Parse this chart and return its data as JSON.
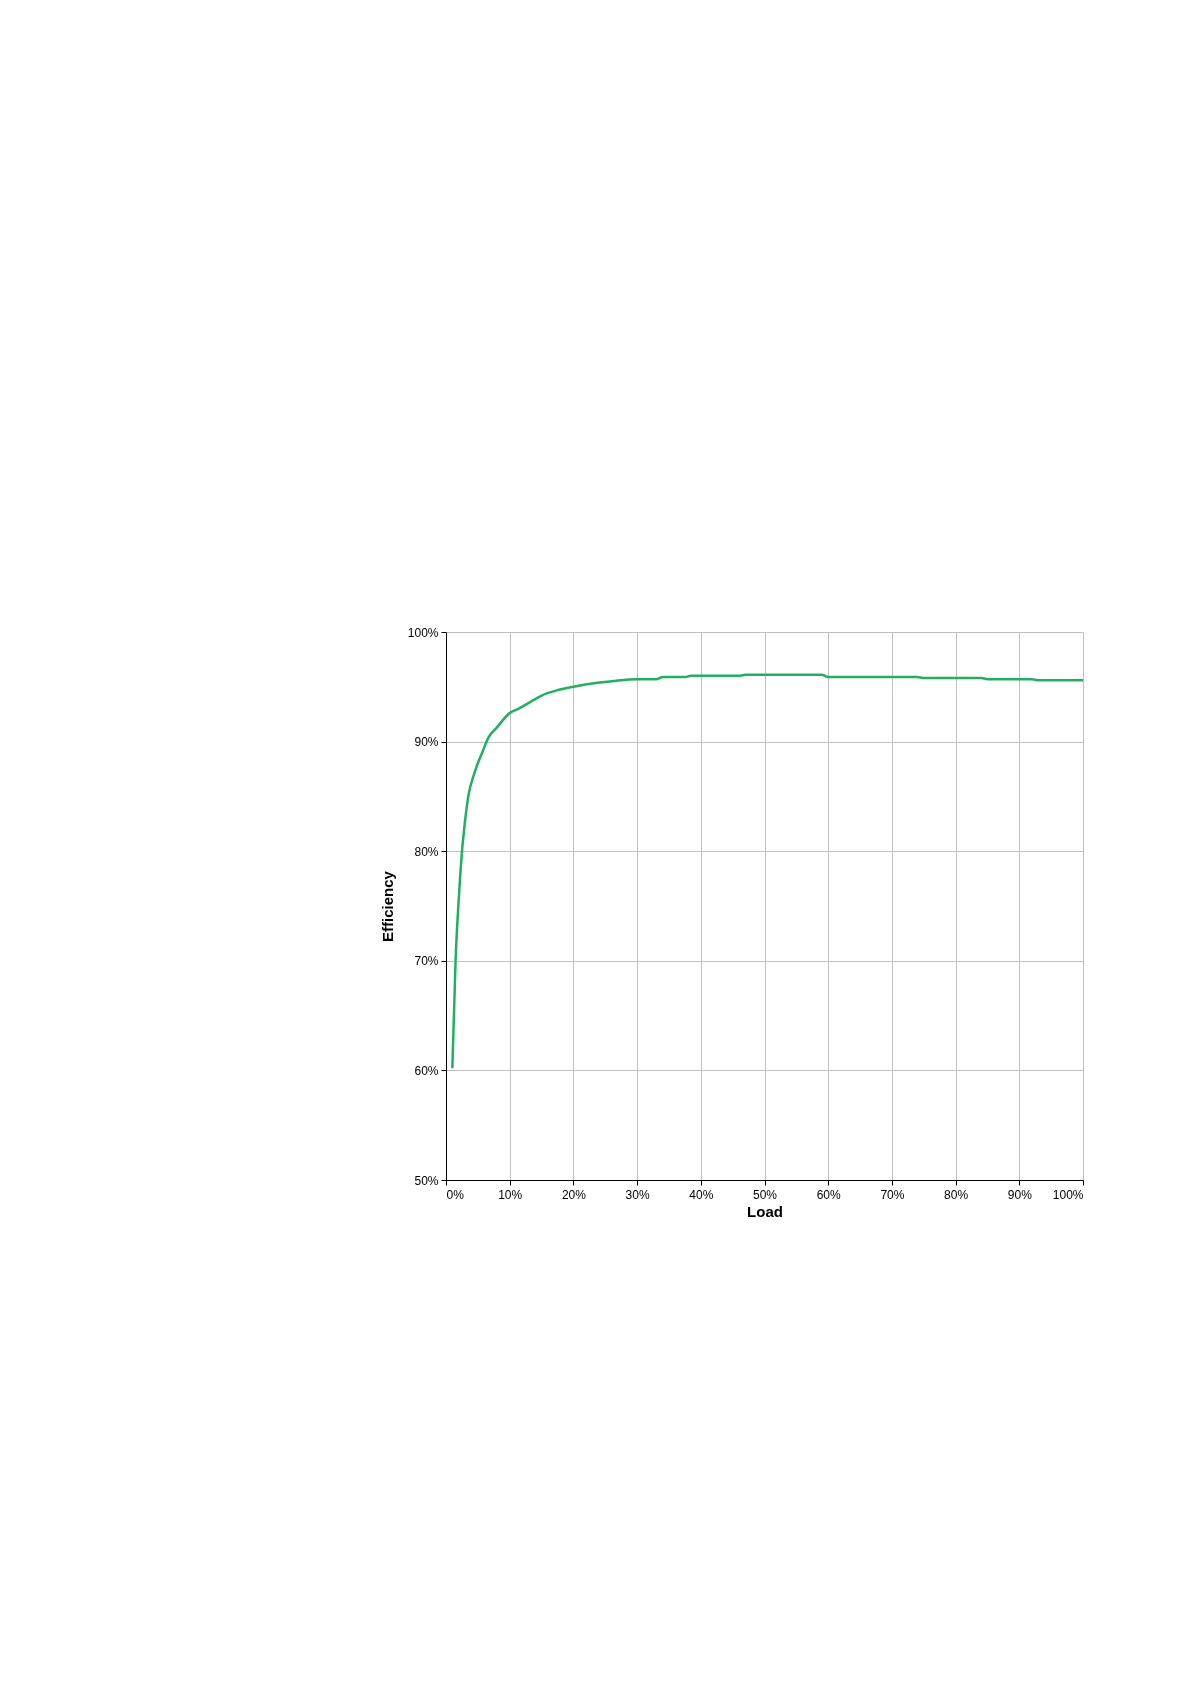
{
  "chart_data": {
    "type": "line",
    "xlabel": "Load",
    "ylabel": "Efficiency",
    "x": [
      1,
      1.5,
      2,
      2.5,
      3,
      3.5,
      4.5,
      5.75,
      6.7,
      8,
      10,
      11.4,
      13.2,
      15,
      17.5,
      20,
      23,
      26,
      30,
      33,
      34,
      37.5,
      38.5,
      46,
      47,
      59,
      60,
      74,
      75,
      84,
      85,
      92,
      93,
      100
    ],
    "series": [
      {
        "color": "#20b060",
        "values": [
          60.3,
          70,
          75.6,
          79.9,
          82.8,
          85,
          87.2,
          89.1,
          90.4,
          91.3,
          92.6,
          93,
          93.6,
          94.2,
          94.7,
          95,
          95.3,
          95.5,
          95.7,
          95.7,
          95.9,
          95.9,
          96.0,
          96.0,
          96.1,
          96.1,
          95.9,
          95.9,
          95.8,
          95.8,
          95.7,
          95.7,
          95.6,
          95.6
        ]
      }
    ],
    "xlim": [
      0,
      100
    ],
    "ylim": [
      50,
      100
    ],
    "xticks": [
      {
        "value": 0,
        "label": "0%"
      },
      {
        "value": 10,
        "label": "10%"
      },
      {
        "value": 20,
        "label": "20%"
      },
      {
        "value": 30,
        "label": "30%"
      },
      {
        "value": 40,
        "label": "40%"
      },
      {
        "value": 50,
        "label": "50%"
      },
      {
        "value": 60,
        "label": "60%"
      },
      {
        "value": 70,
        "label": "70%"
      },
      {
        "value": 80,
        "label": "80%"
      },
      {
        "value": 90,
        "label": "90%"
      },
      {
        "value": 100,
        "label": "100%"
      }
    ],
    "yticks": [
      {
        "value": 50,
        "label": "50%"
      },
      {
        "value": 60,
        "label": "60%"
      },
      {
        "value": 70,
        "label": "70%"
      },
      {
        "value": 80,
        "label": "80%"
      },
      {
        "value": 90,
        "label": "90%"
      },
      {
        "value": 100,
        "label": "100%"
      }
    ],
    "grid": true,
    "line_style": "solid"
  }
}
